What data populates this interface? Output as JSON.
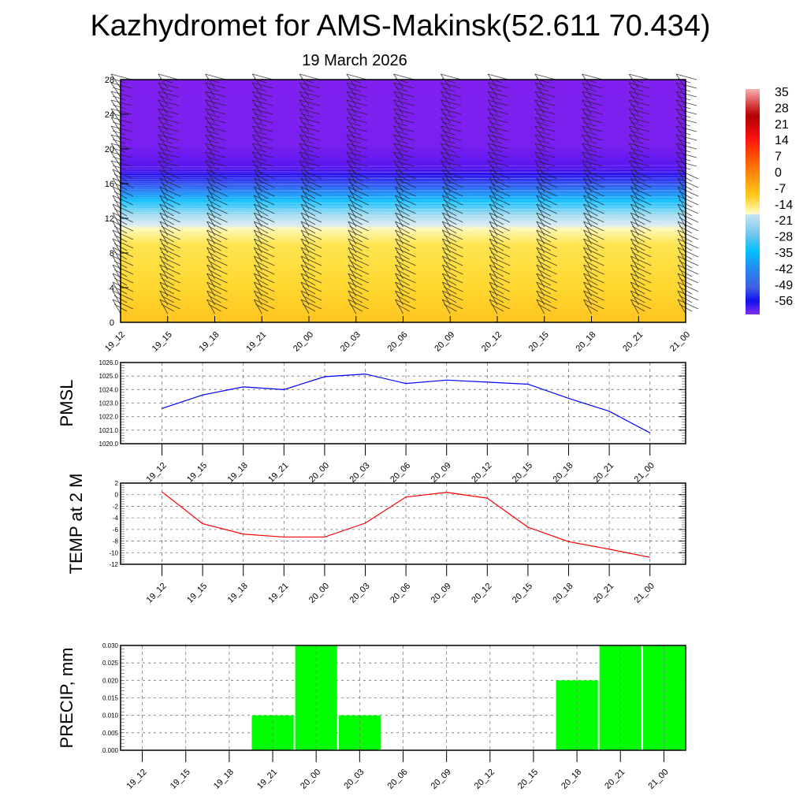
{
  "header": {
    "title": "Kazhydromet for AMS-Makinsk(52.611 70.434)",
    "subtitle": "19 March 2026"
  },
  "chart_data": [
    {
      "type": "heatmap",
      "title": "Temperature cross-section with wind barbs",
      "x": [
        "19_12",
        "19_15",
        "19_18",
        "19_21",
        "20_00",
        "20_03",
        "20_06",
        "20_09",
        "20_12",
        "20_15",
        "20_18",
        "20_21",
        "21_00"
      ],
      "ylim": [
        0,
        28
      ],
      "yticks": [
        "0",
        "4",
        "8",
        "12",
        "16",
        "20",
        "24",
        "28"
      ],
      "colorbar": {
        "labels": [
          "35",
          "28",
          "21",
          "14",
          "7",
          "0",
          "-7",
          "-14",
          "-21",
          "-28",
          "-35",
          "-42",
          "-49",
          "-56"
        ],
        "range": [
          -60,
          38
        ]
      },
      "field_profile": [
        {
          "level": 0,
          "temp": -2
        },
        {
          "level": 5,
          "temp": -5
        },
        {
          "level": 10,
          "temp": -11
        },
        {
          "level": 11,
          "temp": -13
        },
        {
          "level": 12,
          "temp": -17
        },
        {
          "level": 13,
          "temp": -26
        },
        {
          "level": 14,
          "temp": -33
        },
        {
          "level": 16,
          "temp": -44
        },
        {
          "level": 17,
          "temp": -55
        },
        {
          "level": 20,
          "temp": -60
        },
        {
          "level": 28,
          "temp": -60
        }
      ],
      "colors": {
        "purple": "#8020f0",
        "blue": "#2a10f0",
        "cyan": "#10c0ff",
        "ice": "#d0e8f4",
        "pale_yellow": "#fff8b8",
        "yellow": "#ffd830",
        "orange": "#ffc020"
      }
    },
    {
      "type": "line",
      "ylabel": "PMSL",
      "categories": [
        "19_12",
        "19_15",
        "19_18",
        "19_21",
        "20_00",
        "20_03",
        "20_06",
        "20_09",
        "20_12",
        "20_15",
        "20_18",
        "20_21",
        "21_00"
      ],
      "values": [
        1022.6,
        1023.6,
        1024.2,
        1024.0,
        1024.95,
        1025.15,
        1024.45,
        1024.7,
        1024.55,
        1024.4,
        1023.35,
        1022.4,
        1020.8
      ],
      "ylim": [
        1020,
        1026
      ],
      "yticks": [
        "1020.0",
        "1021.0",
        "1022.0",
        "1023.0",
        "1024.0",
        "1025.0",
        "1026.0"
      ],
      "color": "#0000ff"
    },
    {
      "type": "line",
      "ylabel": "TEMP at 2 M",
      "categories": [
        "19_12",
        "19_15",
        "19_18",
        "19_21",
        "20_00",
        "20_03",
        "20_06",
        "20_09",
        "20_12",
        "20_15",
        "20_18",
        "20_21",
        "21_00"
      ],
      "values": [
        0.5,
        -5.0,
        -6.8,
        -7.3,
        -7.3,
        -4.9,
        -0.4,
        0.4,
        -0.6,
        -5.6,
        -8.1,
        -9.4,
        -10.8
      ],
      "ylim": [
        -12,
        2
      ],
      "yticks": [
        "-12",
        "-10",
        "-8",
        "-6",
        "-4",
        "-2",
        "0",
        "2"
      ],
      "color": "#ff0000"
    },
    {
      "type": "bar",
      "ylabel": "PRECIP, mm",
      "categories": [
        "19_12",
        "19_15",
        "19_18",
        "19_21",
        "20_00",
        "20_03",
        "20_06",
        "20_09",
        "20_12",
        "20_15",
        "20_18",
        "20_21",
        "21_00"
      ],
      "values": [
        0,
        0,
        0,
        0.01,
        0.03,
        0.01,
        0,
        0,
        0,
        0,
        0.02,
        0.03,
        0.03
      ],
      "ylim": [
        0,
        0.03
      ],
      "yticks": [
        "0.000",
        "0.005",
        "0.010",
        "0.015",
        "0.020",
        "0.025",
        "0.030"
      ],
      "color": "#00ff00"
    }
  ]
}
